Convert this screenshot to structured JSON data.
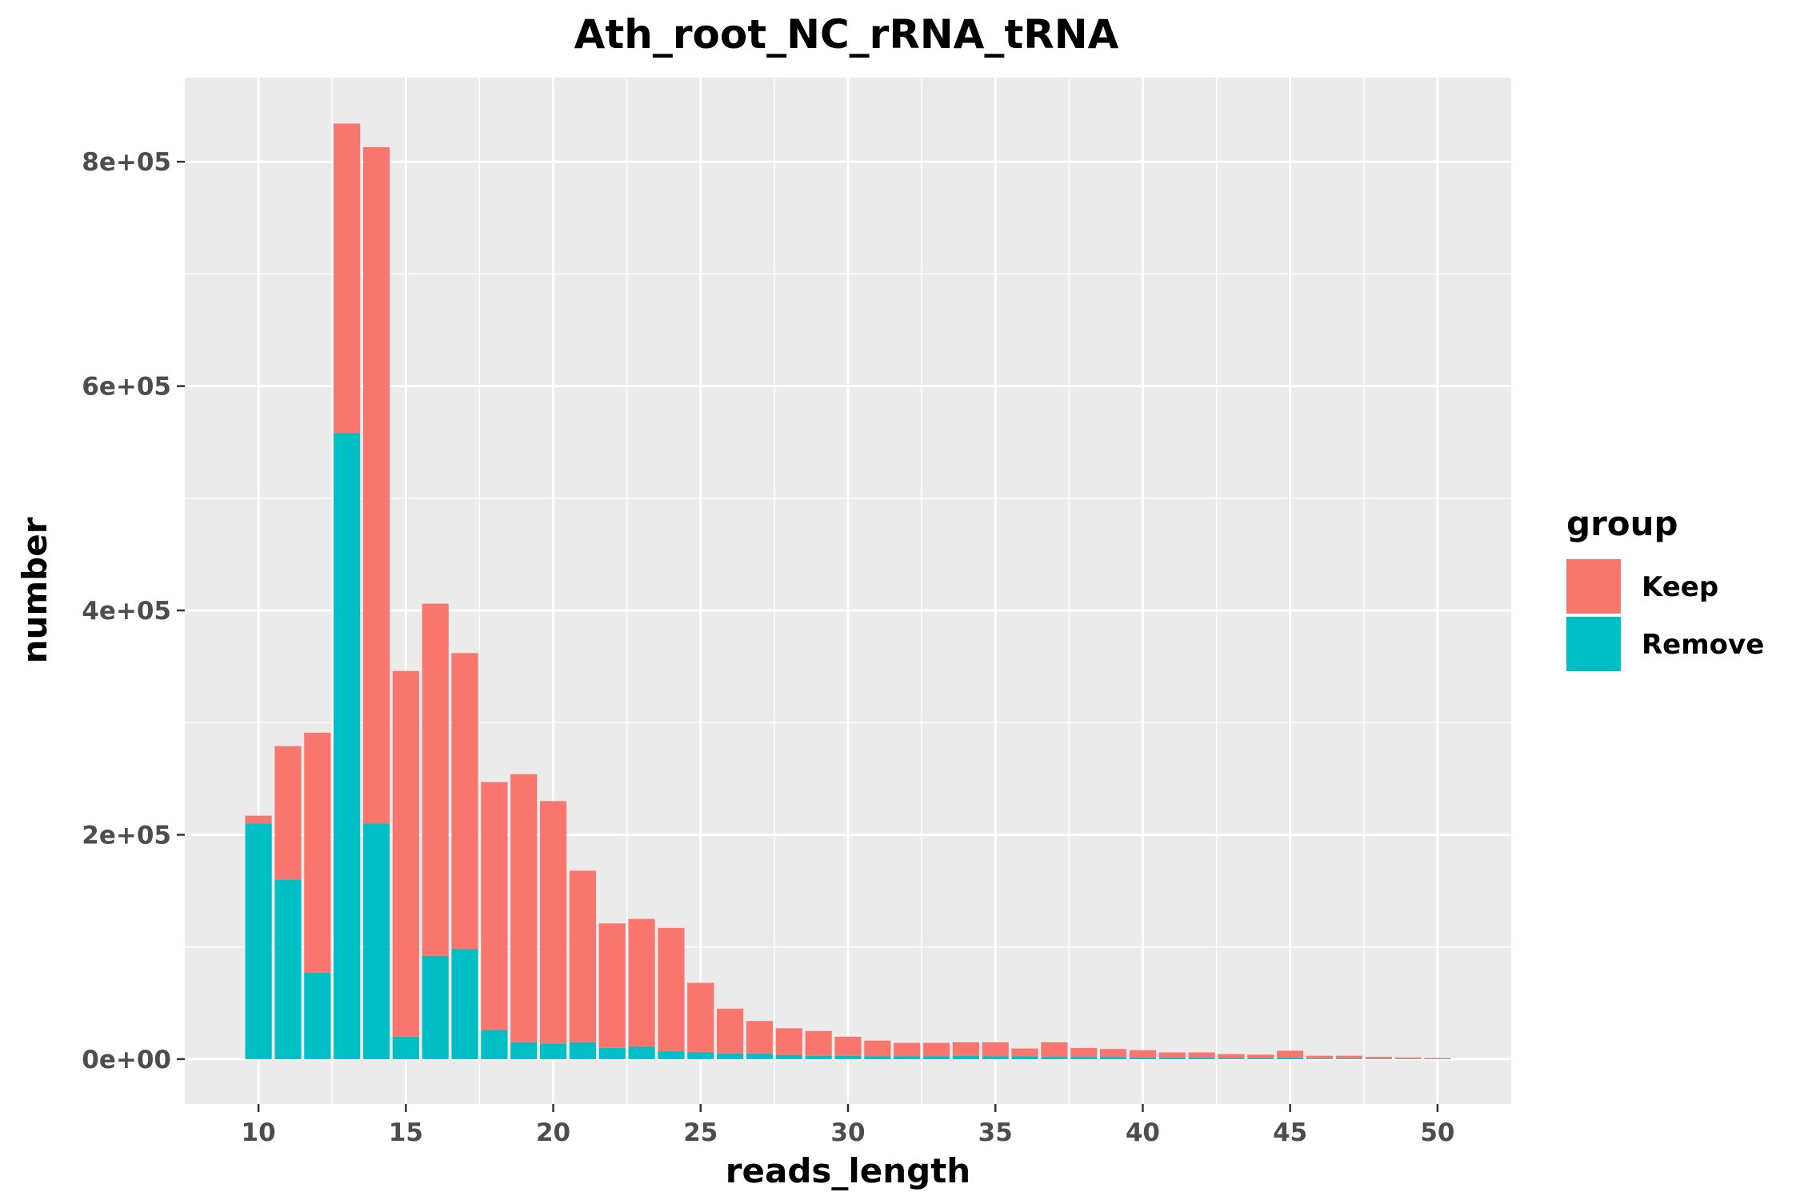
{
  "chart_data": {
    "type": "bar",
    "stacked": true,
    "title": "Ath_root_NC_rRNA_tRNA",
    "xlabel": "reads_length",
    "ylabel": "number",
    "x": [
      10,
      11,
      12,
      13,
      14,
      15,
      16,
      17,
      18,
      19,
      20,
      21,
      22,
      23,
      24,
      25,
      26,
      27,
      28,
      29,
      30,
      31,
      32,
      33,
      34,
      35,
      36,
      37,
      38,
      39,
      40,
      41,
      42,
      43,
      44,
      45,
      46,
      47,
      48,
      49,
      50
    ],
    "xlim": [
      7.5,
      52.5
    ],
    "ylim": [
      -40000,
      875000
    ],
    "x_ticks": [
      10,
      15,
      20,
      25,
      30,
      35,
      40,
      45,
      50
    ],
    "y_ticks": [
      0,
      200000,
      400000,
      600000,
      800000
    ],
    "y_tick_labels": [
      "0e+00",
      "2e+05",
      "4e+05",
      "6e+05",
      "8e+05"
    ],
    "grid": true,
    "legend": {
      "title": "group",
      "position": "right"
    },
    "series": [
      {
        "name": "Remove",
        "color": "#00BFC4",
        "values": [
          210000,
          160000,
          77000,
          558000,
          210000,
          20000,
          92000,
          98000,
          26000,
          15000,
          14000,
          15000,
          10000,
          11000,
          7000,
          6000,
          5000,
          5000,
          3500,
          3000,
          3000,
          2500,
          2500,
          2500,
          3000,
          2500,
          2500,
          2000,
          2000,
          2000,
          1500,
          1500,
          1500,
          1000,
          1000,
          1500,
          800,
          700,
          500,
          400,
          300
        ]
      },
      {
        "name": "Keep",
        "color": "#F8766D",
        "values": [
          7000,
          119000,
          214000,
          276000,
          603000,
          326000,
          314000,
          264000,
          221000,
          239000,
          216000,
          153000,
          111000,
          114000,
          110000,
          62000,
          40000,
          29000,
          24000,
          22000,
          17000,
          14000,
          12000,
          12000,
          12000,
          12500,
          7000,
          13000,
          8000,
          7000,
          6500,
          4500,
          4500,
          3500,
          3000,
          6000,
          2200,
          2300,
          1500,
          1100,
          700
        ]
      }
    ]
  }
}
